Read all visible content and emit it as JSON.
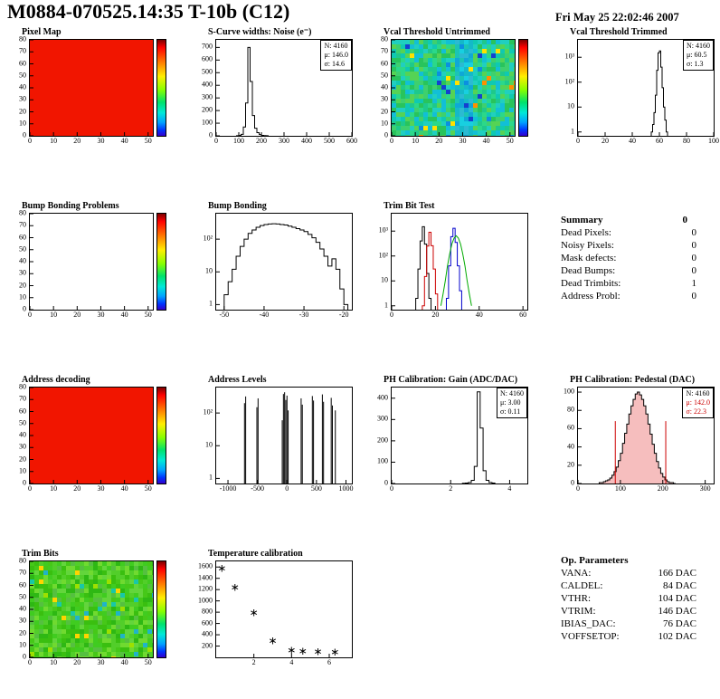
{
  "header": {
    "title": "M0884-070525.14:35 T-10b (C12)",
    "date": "Fri May 25 22:02:46 2007"
  },
  "summary": {
    "title": "Summary",
    "value": "0",
    "rows": [
      {
        "label": "Dead Pixels:",
        "value": "0"
      },
      {
        "label": "Noisy Pixels:",
        "value": "0"
      },
      {
        "label": "Mask defects:",
        "value": "0"
      },
      {
        "label": "Dead Bumps:",
        "value": "0"
      },
      {
        "label": "Dead Trimbits:",
        "value": "1"
      },
      {
        "label": "Address Probl:",
        "value": "0"
      }
    ]
  },
  "op_parameters": {
    "title": "Op. Parameters",
    "rows": [
      {
        "label": "VANA:",
        "value": "166 DAC"
      },
      {
        "label": "CALDEL:",
        "value": "84 DAC"
      },
      {
        "label": "VTHR:",
        "value": "104 DAC"
      },
      {
        "label": "VTRIM:",
        "value": "146 DAC"
      },
      {
        "label": "IBIAS_DAC:",
        "value": "76 DAC"
      },
      {
        "label": "VOFFSETOP:",
        "value": "102 DAC"
      }
    ]
  },
  "chart_data": [
    {
      "id": "pixel-map",
      "title": "Pixel Map",
      "type": "heatmap",
      "fill": "#f11500",
      "x_range": [
        0,
        52
      ],
      "x_ticks": [
        0,
        10,
        20,
        30,
        40,
        50
      ],
      "y_range": [
        0,
        80
      ],
      "y_ticks": [
        0,
        10,
        20,
        30,
        40,
        50,
        60,
        70,
        80
      ],
      "colorbar": true
    },
    {
      "id": "scurve-noise",
      "title": "S-Curve widths: Noise (e⁻)",
      "type": "hist",
      "y_scale": "lin",
      "x_range": [
        0,
        600
      ],
      "x_ticks": [
        0,
        100,
        200,
        300,
        400,
        500,
        600
      ],
      "y_range": [
        0,
        760
      ],
      "y_ticks": [
        0,
        100,
        200,
        300,
        400,
        500,
        600,
        700
      ],
      "series": [
        {
          "color": "#000000",
          "bin_start": 90,
          "bin_width": 10,
          "counts": [
            1,
            3,
            12,
            70,
            260,
            700,
            430,
            160,
            60,
            25,
            10,
            4,
            2,
            1
          ]
        }
      ],
      "stats": {
        "lines": [
          "N: 4160",
          "μ: 146.0",
          "σ: 14.6"
        ]
      }
    },
    {
      "id": "vcal-untrimmed",
      "title": "Vcal Threshold Untrimmed",
      "type": "heatmap",
      "seed": 11,
      "palette": [
        "#28c45c",
        "#1ec98b",
        "#0fc9b2",
        "#3ed06e",
        "#20cfc0",
        "#55d355",
        "#12bfd6",
        "#2bd88a"
      ],
      "rare": [
        "#ffe100",
        "#ff9000",
        "#1540d0",
        "#0b8fe0"
      ],
      "band": {
        "from": 0.5,
        "to": 0.66,
        "palette": [
          "#14b9c8",
          "#0fa8d6",
          "#1bc4b4",
          "#2bbad2",
          "#18cfe0"
        ]
      },
      "x_range": [
        0,
        52
      ],
      "x_ticks": [
        0,
        10,
        20,
        30,
        40,
        50
      ],
      "y_range": [
        0,
        80
      ],
      "y_ticks": [
        0,
        10,
        20,
        30,
        40,
        50,
        60,
        70,
        80
      ],
      "colorbar": true
    },
    {
      "id": "vcal-trimmed",
      "title": "Vcal Threshold Trimmed",
      "type": "hist",
      "y_scale": "log",
      "x_range": [
        0,
        100
      ],
      "x_ticks": [
        0,
        20,
        40,
        60,
        80,
        100
      ],
      "y_range": [
        0.7,
        5000
      ],
      "y_ticks": [
        1,
        10,
        100,
        1000
      ],
      "series": [
        {
          "color": "#000000",
          "bin_start": 54,
          "bin_width": 1,
          "counts": [
            1,
            2,
            6,
            30,
            300,
            1500,
            1800,
            400,
            60,
            10,
            3,
            1
          ]
        }
      ],
      "stats": {
        "lines": [
          "N: 4160",
          "μ: 60.5",
          "σ: 1.3"
        ]
      }
    },
    {
      "id": "bump-problems",
      "title": "Bump Bonding Problems",
      "type": "heatmap",
      "x_range": [
        0,
        52
      ],
      "x_ticks": [
        0,
        10,
        20,
        30,
        40,
        50
      ],
      "y_range": [
        0,
        80
      ],
      "y_ticks": [
        0,
        10,
        20,
        30,
        40,
        50,
        60,
        70,
        80
      ],
      "colorbar": true
    },
    {
      "id": "bump-bonding",
      "title": "Bump Bonding",
      "type": "hist",
      "y_scale": "log",
      "x_range": [
        -52,
        -18
      ],
      "x_ticks": [
        -50,
        -40,
        -30,
        -20
      ],
      "y_range": [
        0.7,
        600
      ],
      "y_ticks": [
        1,
        10,
        100
      ],
      "series": [
        {
          "color": "#000000",
          "bin_start": -50,
          "bin_width": 1,
          "counts": [
            2,
            5,
            12,
            30,
            60,
            100,
            150,
            190,
            230,
            260,
            280,
            290,
            295,
            290,
            280,
            270,
            250,
            230,
            210,
            190,
            170,
            140,
            110,
            80,
            50,
            30,
            15,
            25,
            12,
            3,
            1
          ]
        }
      ]
    },
    {
      "id": "trim-bit-test",
      "title": "Trim Bit Test",
      "type": "hist",
      "y_scale": "log",
      "x_range": [
        0,
        62
      ],
      "x_ticks": [
        0,
        20,
        40,
        60
      ],
      "y_range": [
        0.7,
        5000
      ],
      "y_ticks": [
        1,
        10,
        100,
        1000
      ],
      "series": [
        {
          "color": "#000000",
          "bin_start": 11,
          "bin_width": 1,
          "counts": [
            2,
            30,
            400,
            1500,
            300,
            20,
            2
          ]
        },
        {
          "color": "#cc0000",
          "bin_start": 14,
          "bin_width": 1,
          "counts": [
            1,
            15,
            250,
            900,
            260,
            30,
            3
          ]
        },
        {
          "color": "#0000cc",
          "bin_start": 25,
          "bin_width": 1,
          "counts": [
            2,
            40,
            600,
            1300,
            350,
            40,
            4
          ]
        },
        {
          "color": "#00aa00",
          "bin_start": 22,
          "bin_width": 1,
          "smooth": true,
          "counts": [
            1,
            3,
            10,
            40,
            120,
            300,
            520,
            650,
            520,
            300,
            120,
            40,
            10,
            3,
            1
          ]
        }
      ]
    },
    {
      "id": "address-decoding",
      "title": "Address decoding",
      "type": "heatmap",
      "fill": "#f11500",
      "x_range": [
        0,
        52
      ],
      "x_ticks": [
        0,
        10,
        20,
        30,
        40,
        50
      ],
      "y_range": [
        0,
        80
      ],
      "y_ticks": [
        0,
        10,
        20,
        30,
        40,
        50,
        60,
        70,
        80
      ],
      "colorbar": true
    },
    {
      "id": "address-levels",
      "title": "Address Levels",
      "type": "hist",
      "y_scale": "log",
      "x_range": [
        -1200,
        1100
      ],
      "x_ticks": [
        -1000,
        -500,
        0,
        500,
        1000
      ],
      "y_range": [
        0.7,
        600
      ],
      "y_ticks": [
        1,
        10,
        100
      ],
      "spikes": [
        [
          -720,
          200
        ],
        [
          -700,
          320
        ],
        [
          -510,
          150
        ],
        [
          -490,
          280
        ],
        [
          -80,
          60
        ],
        [
          -60,
          380
        ],
        [
          -40,
          430
        ],
        [
          -20,
          250
        ],
        [
          0,
          340
        ],
        [
          20,
          120
        ],
        [
          240,
          280
        ],
        [
          260,
          180
        ],
        [
          430,
          330
        ],
        [
          450,
          240
        ],
        [
          600,
          370
        ],
        [
          620,
          220
        ],
        [
          750,
          290
        ],
        [
          770,
          170
        ],
        [
          820,
          120
        ]
      ]
    },
    {
      "id": "ph-gain",
      "title": "PH Calibration: Gain (ADC/DAC)",
      "type": "hist",
      "y_scale": "lin",
      "x_range": [
        0,
        4.6
      ],
      "x_ticks": [
        0,
        2,
        4
      ],
      "y_range": [
        0,
        450
      ],
      "y_ticks": [
        0,
        100,
        200,
        300,
        400
      ],
      "series": [
        {
          "color": "#000000",
          "bin_start": 2.4,
          "bin_width": 0.1,
          "counts": [
            1,
            2,
            5,
            15,
            80,
            430,
            260,
            60,
            15,
            5,
            2
          ]
        }
      ],
      "stats": {
        "lines": [
          "N: 4160",
          "μ: 3.00",
          "σ: 0.11"
        ]
      }
    },
    {
      "id": "ph-pedestal",
      "title": "PH Calibration: Pedestal (DAC)",
      "type": "hist",
      "y_scale": "lin",
      "x_range": [
        0,
        320
      ],
      "x_ticks": [
        0,
        100,
        200,
        300
      ],
      "y_range": [
        0,
        105
      ],
      "y_ticks": [
        0,
        20,
        40,
        60,
        80,
        100
      ],
      "series": [
        {
          "color": "#000000",
          "fill": "rgba(230,70,70,0.35)",
          "bin_start": 50,
          "bin_width": 5,
          "counts": [
            1,
            1,
            2,
            3,
            4,
            6,
            9,
            13,
            18,
            25,
            33,
            44,
            55,
            65,
            76,
            85,
            92,
            98,
            100,
            97,
            92,
            85,
            76,
            65,
            54,
            43,
            33,
            24,
            17,
            11,
            7,
            4,
            2,
            1,
            1,
            0
          ]
        }
      ],
      "vlines": [
        {
          "x": 88,
          "color": "#cc0000"
        },
        {
          "x": 207,
          "color": "#cc0000"
        }
      ],
      "stats": {
        "lines": [
          "N: 4160",
          "μ: 142.0",
          "σ: 22.3"
        ],
        "colors": [
          "#000000",
          "#cc0000",
          "#cc0000"
        ]
      }
    },
    {
      "id": "trim-bits",
      "title": "Trim Bits",
      "type": "heatmap",
      "seed": 23,
      "palette": [
        "#46c818",
        "#52ce2a",
        "#3abf10",
        "#63d53c",
        "#2eb814",
        "#55c040",
        "#70da30",
        "#40cc20"
      ],
      "rare": [
        "#ffd400",
        "#18c8a8",
        "#9de000",
        "#20b4c8"
      ],
      "x_range": [
        0,
        52
      ],
      "x_ticks": [
        0,
        10,
        20,
        30,
        40,
        50
      ],
      "y_range": [
        0,
        80
      ],
      "y_ticks": [
        0,
        10,
        20,
        30,
        40,
        50,
        60,
        70,
        80
      ],
      "colorbar": true
    },
    {
      "id": "temperature",
      "title": "Temperature calibration",
      "type": "scatter",
      "x_range": [
        0,
        7.2
      ],
      "x_ticks": [
        2,
        4,
        6
      ],
      "y_range": [
        0,
        1700
      ],
      "y_ticks": [
        200,
        400,
        600,
        800,
        1000,
        1200,
        1400,
        1600
      ],
      "points": [
        [
          0.3,
          1580
        ],
        [
          1.0,
          1240
        ],
        [
          2.0,
          790
        ],
        [
          3.0,
          300
        ],
        [
          4.0,
          130
        ],
        [
          4.6,
          115
        ],
        [
          5.4,
          105
        ],
        [
          6.3,
          95
        ]
      ]
    }
  ]
}
